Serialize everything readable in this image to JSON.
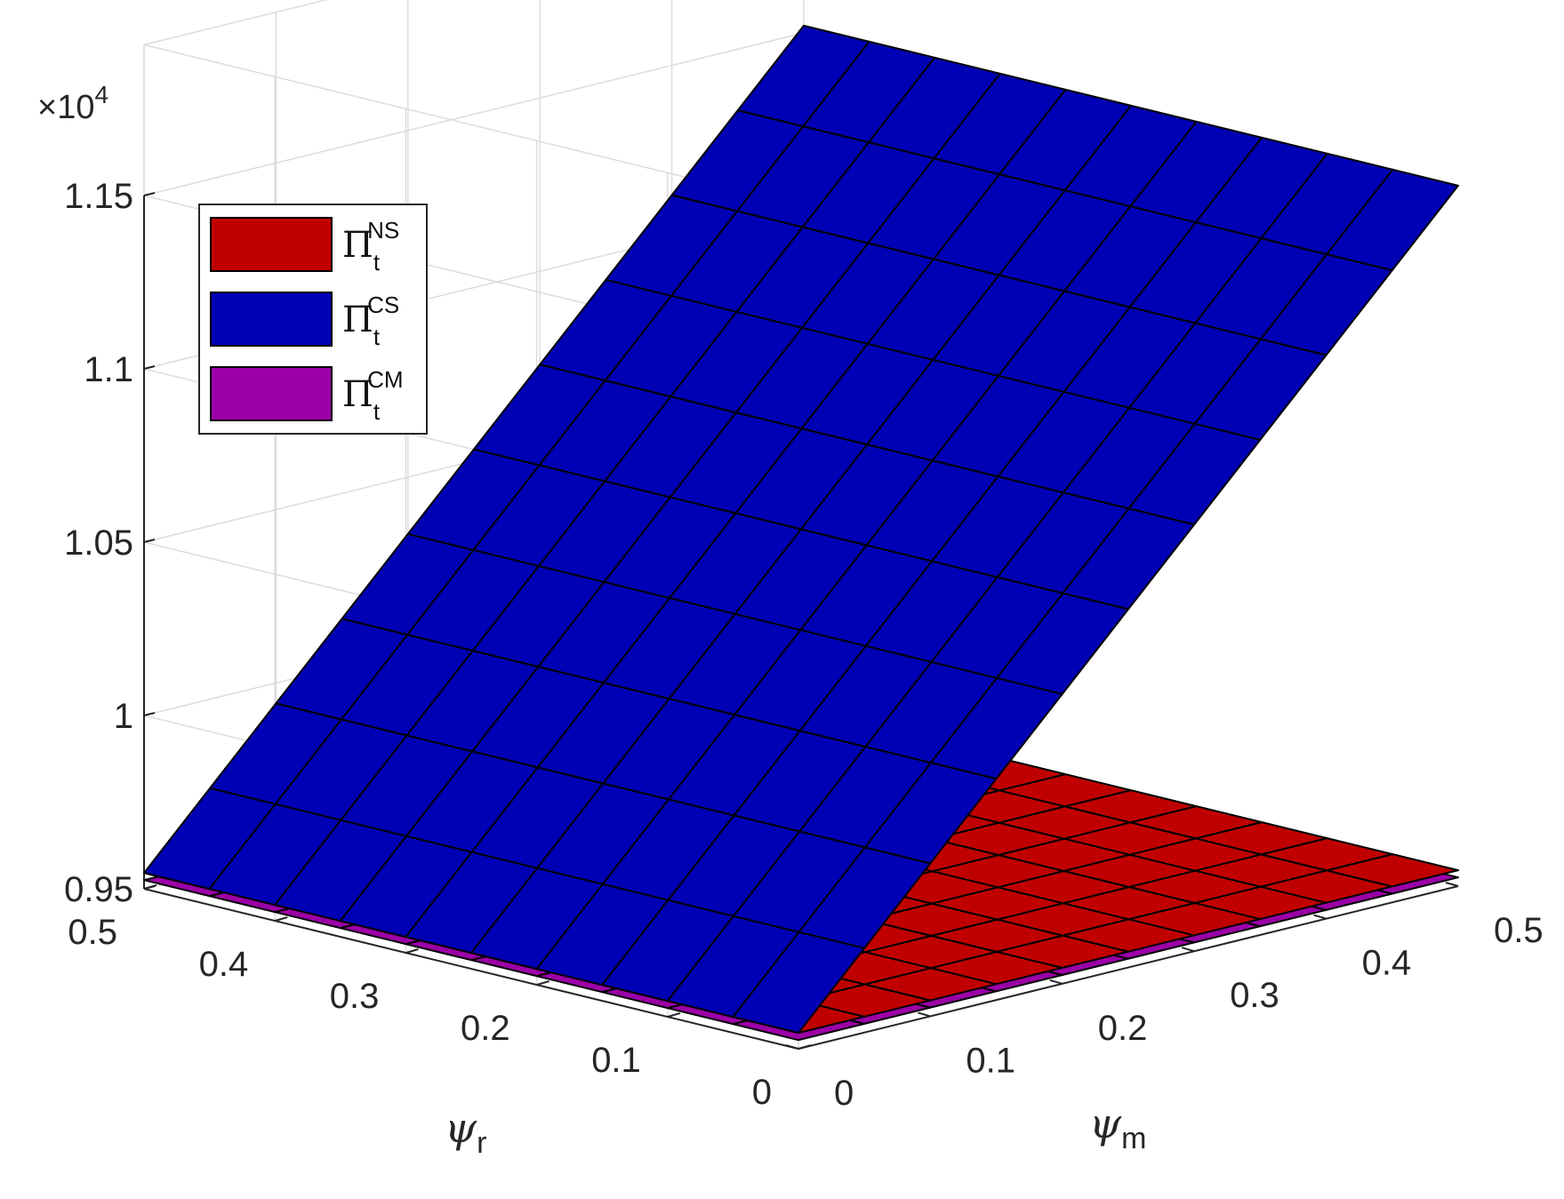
{
  "chart_data": {
    "type": "surface",
    "x": {
      "label": "ψ",
      "subscript": "m",
      "ticks": [
        "0",
        "0.1",
        "0.2",
        "0.3",
        "0.4",
        "0.5"
      ],
      "values": [
        0,
        0.05,
        0.1,
        0.15,
        0.2,
        0.25,
        0.3,
        0.35,
        0.4,
        0.45,
        0.5
      ],
      "lim": [
        0,
        0.5
      ]
    },
    "y": {
      "label": "ψ",
      "subscript": "r",
      "ticks": [
        "0",
        "0.1",
        "0.2",
        "0.3",
        "0.4",
        "0.5"
      ],
      "values": [
        0,
        0.05,
        0.1,
        0.15,
        0.2,
        0.25,
        0.3,
        0.35,
        0.4,
        0.45,
        0.5
      ],
      "lim": [
        0,
        0.5
      ]
    },
    "z": {
      "ticks": [
        "0.95",
        "1",
        "1.05",
        "1.1",
        "1.15"
      ],
      "tick_values": [
        0.95,
        1.0,
        1.05,
        1.1,
        1.15
      ],
      "exponent_label": "×10",
      "exponent_power": "4",
      "lim": [
        0.95,
        1.15
      ]
    },
    "grid": true,
    "legend_position": "top-left",
    "series": [
      {
        "name": "Π",
        "sub": "t",
        "sup": "NS",
        "color": "#c00000",
        "z_at_origin": 0.9546,
        "slope_x": 0.0,
        "slope_y": 0.0
      },
      {
        "name": "Π",
        "sub": "t",
        "sup": "CS",
        "color": "#0000b4",
        "z_at_origin": 0.9546,
        "slope_x": 0.395,
        "slope_y": 0.0
      },
      {
        "name": "Π",
        "sub": "t",
        "sup": "CM",
        "color": "#9b00a6",
        "z_at_origin": 0.9525,
        "slope_x": 0.0,
        "slope_y": 0.0
      }
    ]
  }
}
